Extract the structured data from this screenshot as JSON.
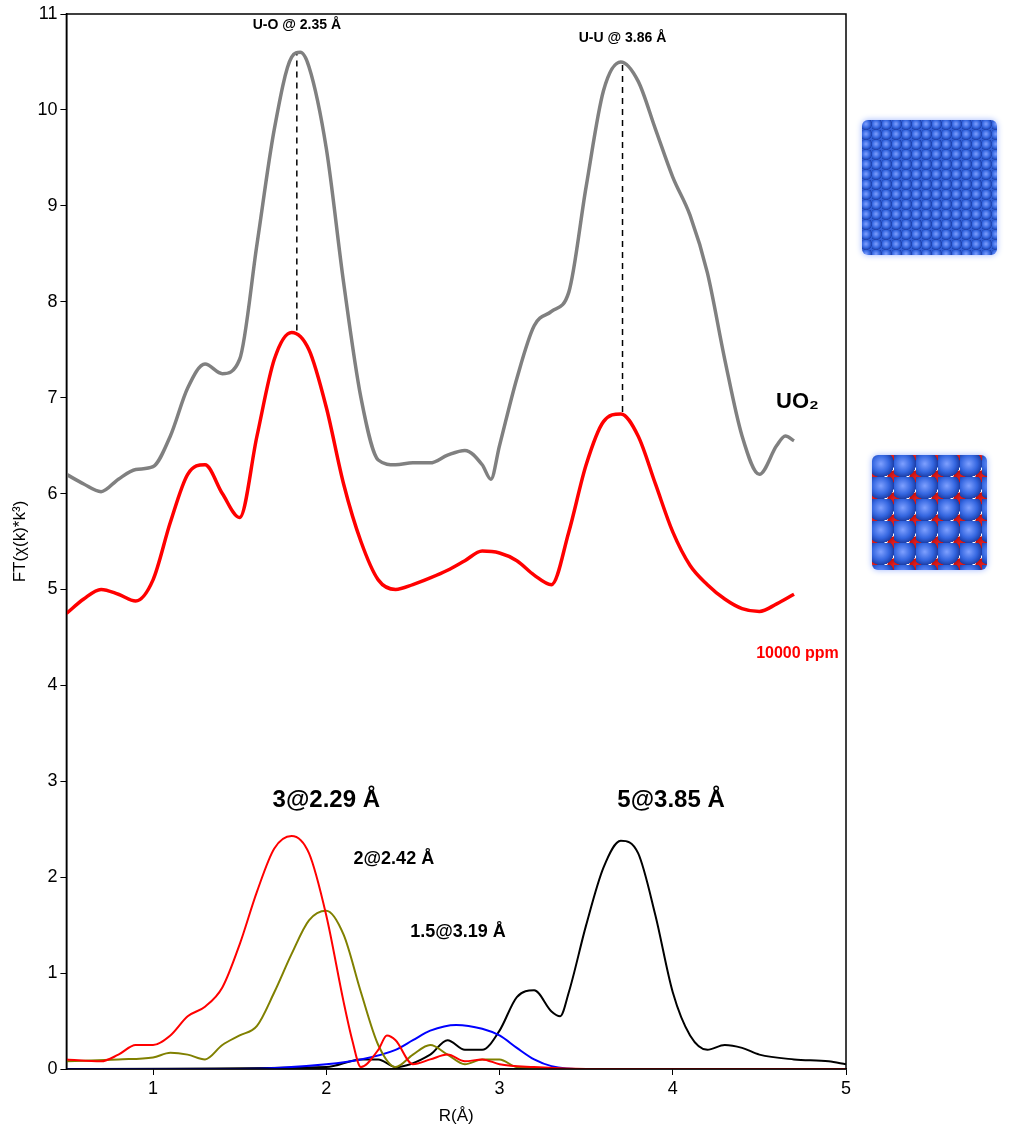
{
  "chart_data": {
    "type": "line",
    "x_label": "R(Å)",
    "y_label": "FT(χ(k)*k³)",
    "xlim": [
      0.5,
      5
    ],
    "xticks": [
      1,
      2,
      3,
      4,
      5
    ],
    "ylim": [
      0,
      11
    ],
    "yticks": [
      0,
      1,
      2,
      3,
      4,
      5,
      6,
      7,
      8,
      9,
      10,
      11
    ],
    "grid": false,
    "tick_labels": true,
    "series": [
      {
        "color": "#808080",
        "line_style": "solid",
        "x": [
          0.5,
          0.6,
          0.7,
          0.8,
          0.9,
          1.0,
          1.1,
          1.2,
          1.3,
          1.4,
          1.5,
          1.6,
          1.7,
          1.8,
          1.85,
          1.9,
          2.0,
          2.1,
          2.2,
          2.3,
          2.4,
          2.5,
          2.6,
          2.7,
          2.8,
          2.9,
          2.95,
          3.0,
          3.1,
          3.2,
          3.3,
          3.4,
          3.5,
          3.6,
          3.7,
          3.8,
          3.9,
          4.0,
          4.1,
          4.2,
          4.3,
          4.4,
          4.5,
          4.6,
          4.65,
          4.7
        ],
        "values": [
          6.2,
          6.1,
          6.02,
          6.15,
          6.25,
          6.28,
          6.6,
          7.1,
          7.35,
          7.25,
          7.4,
          8.6,
          9.8,
          10.55,
          10.6,
          10.45,
          9.6,
          8.2,
          7.0,
          6.35,
          6.3,
          6.32,
          6.32,
          6.4,
          6.45,
          6.3,
          6.15,
          6.5,
          7.2,
          7.75,
          7.9,
          8.1,
          9.2,
          10.2,
          10.5,
          10.3,
          9.8,
          9.3,
          8.9,
          8.3,
          7.4,
          6.6,
          6.2,
          6.5,
          6.6,
          6.55
        ]
      },
      {
        "color": "#ff0000",
        "line_style": "solid",
        "x": [
          0.5,
          0.6,
          0.7,
          0.8,
          0.9,
          1.0,
          1.1,
          1.2,
          1.3,
          1.4,
          1.5,
          1.6,
          1.7,
          1.8,
          1.9,
          2.0,
          2.1,
          2.2,
          2.3,
          2.4,
          2.5,
          2.6,
          2.7,
          2.8,
          2.9,
          3.0,
          3.1,
          3.2,
          3.3,
          3.4,
          3.5,
          3.6,
          3.7,
          3.8,
          3.9,
          4.0,
          4.1,
          4.2,
          4.3,
          4.4,
          4.5,
          4.6,
          4.7
        ],
        "values": [
          4.75,
          4.9,
          5.0,
          4.95,
          4.88,
          5.1,
          5.7,
          6.2,
          6.3,
          6.0,
          5.75,
          6.6,
          7.4,
          7.68,
          7.5,
          6.9,
          6.1,
          5.5,
          5.1,
          5.0,
          5.05,
          5.12,
          5.2,
          5.3,
          5.4,
          5.38,
          5.3,
          5.15,
          5.05,
          5.6,
          6.3,
          6.75,
          6.83,
          6.6,
          6.1,
          5.6,
          5.25,
          5.05,
          4.9,
          4.8,
          4.77,
          4.85,
          4.95
        ]
      },
      {
        "color": "#ff0000",
        "line_style": "solid",
        "x": [
          0.5,
          0.7,
          0.8,
          0.9,
          1.0,
          1.1,
          1.2,
          1.3,
          1.4,
          1.5,
          1.6,
          1.7,
          1.8,
          1.9,
          2.0,
          2.1,
          2.15,
          2.2,
          2.3,
          2.35,
          2.4,
          2.5,
          2.6,
          2.7,
          2.8,
          2.9,
          3.0,
          3.2,
          3.5,
          5.0
        ],
        "values": [
          0.1,
          0.08,
          0.15,
          0.25,
          0.25,
          0.35,
          0.55,
          0.65,
          0.85,
          1.3,
          1.85,
          2.3,
          2.43,
          2.25,
          1.6,
          0.7,
          0.3,
          0.02,
          0.2,
          0.35,
          0.3,
          0.05,
          0.1,
          0.15,
          0.08,
          0.1,
          0.05,
          0.02,
          0,
          0
        ]
      },
      {
        "color": "#808000",
        "line_style": "solid",
        "x": [
          0.5,
          0.8,
          1.0,
          1.1,
          1.2,
          1.3,
          1.4,
          1.5,
          1.6,
          1.7,
          1.8,
          1.9,
          2.0,
          2.1,
          2.2,
          2.3,
          2.4,
          2.5,
          2.6,
          2.7,
          2.8,
          2.9,
          3.0,
          3.1,
          3.5,
          5.0
        ],
        "values": [
          0.08,
          0.1,
          0.12,
          0.17,
          0.15,
          0.1,
          0.25,
          0.35,
          0.45,
          0.8,
          1.2,
          1.55,
          1.65,
          1.4,
          0.8,
          0.25,
          0.02,
          0.15,
          0.25,
          0.15,
          0.05,
          0.1,
          0.1,
          0.02,
          0,
          0
        ]
      },
      {
        "color": "#0000ff",
        "line_style": "solid",
        "x": [
          0.5,
          1.5,
          2.0,
          2.2,
          2.4,
          2.5,
          2.6,
          2.75,
          2.9,
          3.0,
          3.1,
          3.2,
          3.3,
          3.5,
          5.0
        ],
        "values": [
          0,
          0,
          0.05,
          0.1,
          0.2,
          0.3,
          0.4,
          0.46,
          0.42,
          0.35,
          0.22,
          0.1,
          0.03,
          0,
          0
        ]
      },
      {
        "color": "#000000",
        "line_style": "solid",
        "x": [
          0.5,
          2.0,
          2.2,
          2.3,
          2.4,
          2.6,
          2.7,
          2.8,
          2.9,
          3.0,
          3.1,
          3.2,
          3.3,
          3.35,
          3.4,
          3.5,
          3.6,
          3.7,
          3.8,
          3.9,
          4.0,
          4.1,
          4.2,
          4.3,
          4.4,
          4.5,
          4.7,
          4.9,
          5.0
        ],
        "values": [
          0,
          0.02,
          0.1,
          0.1,
          0.02,
          0.15,
          0.3,
          0.2,
          0.2,
          0.4,
          0.75,
          0.82,
          0.6,
          0.55,
          0.8,
          1.5,
          2.1,
          2.38,
          2.25,
          1.6,
          0.8,
          0.35,
          0.2,
          0.25,
          0.22,
          0.15,
          0.1,
          0.08,
          0.05
        ]
      },
      {
        "color": "#000000",
        "line_style": "dashed",
        "x": [
          1.83,
          1.83
        ],
        "values": [
          7.7,
          10.6
        ]
      },
      {
        "color": "#000000",
        "line_style": "dashed",
        "x": [
          3.71,
          3.71
        ],
        "values": [
          6.85,
          10.5
        ]
      }
    ],
    "annotations": [
      {
        "text": "U-O @ 2.35 Å",
        "x": 1.83,
        "y": 10.88,
        "color": "#000000"
      },
      {
        "text": "U-U @ 3.86 Å",
        "x": 3.71,
        "y": 10.75,
        "color": "#000000"
      },
      {
        "text": "UO₂",
        "x": 4.72,
        "y": 6.95,
        "color": "#000000"
      },
      {
        "text": "10000 ppm",
        "x": 4.72,
        "y": 4.33,
        "color": "#ff0000"
      },
      {
        "text": "3@2.29 Å",
        "x": 2.0,
        "y": 2.8,
        "color": "#000000"
      },
      {
        "text": "2@2.42 Å",
        "x": 2.39,
        "y": 2.19,
        "color": "#000000"
      },
      {
        "text": "1.5@3.19 Å",
        "x": 2.76,
        "y": 1.43,
        "color": "#000000"
      },
      {
        "text": "5@3.85 Å",
        "x": 3.99,
        "y": 2.8,
        "color": "#000000"
      }
    ]
  }
}
